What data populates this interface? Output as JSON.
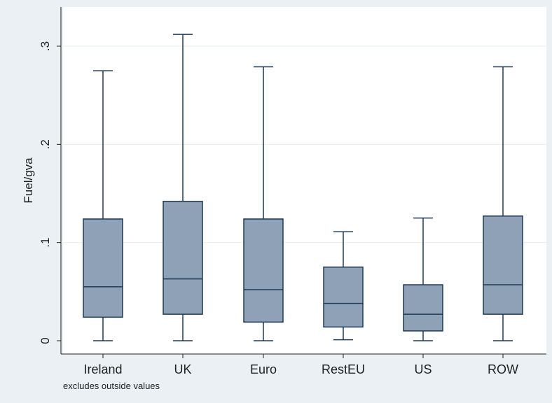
{
  "chart_data": {
    "type": "boxplot",
    "ylabel": "Fuel/gva",
    "note": "excludes outside values",
    "ylim": [
      0,
      0.33
    ],
    "yticks": [
      0,
      0.1,
      0.2,
      0.3
    ],
    "ytick_labels": [
      "0",
      ".1",
      ".2",
      ".3"
    ],
    "grid": true,
    "colors": {
      "box_fill": "#8ea1b6",
      "line": "#1e3a56",
      "outer_bg": "#eaf0f3",
      "plot_bg": "#ffffff",
      "grid": "#e6ecef"
    },
    "categories": [
      "Ireland",
      "UK",
      "Euro",
      "RestEU",
      "US",
      "ROW"
    ],
    "boxes": [
      {
        "min": 0.0,
        "q1": 0.024,
        "median": 0.055,
        "q3": 0.124,
        "max": 0.275
      },
      {
        "min": 0.0,
        "q1": 0.027,
        "median": 0.063,
        "q3": 0.142,
        "max": 0.312
      },
      {
        "min": 0.0,
        "q1": 0.019,
        "median": 0.052,
        "q3": 0.124,
        "max": 0.279
      },
      {
        "min": 0.001,
        "q1": 0.014,
        "median": 0.038,
        "q3": 0.075,
        "max": 0.111
      },
      {
        "min": 0.0,
        "q1": 0.01,
        "median": 0.027,
        "q3": 0.057,
        "max": 0.125
      },
      {
        "min": 0.0,
        "q1": 0.027,
        "median": 0.057,
        "q3": 0.127,
        "max": 0.279
      }
    ]
  }
}
